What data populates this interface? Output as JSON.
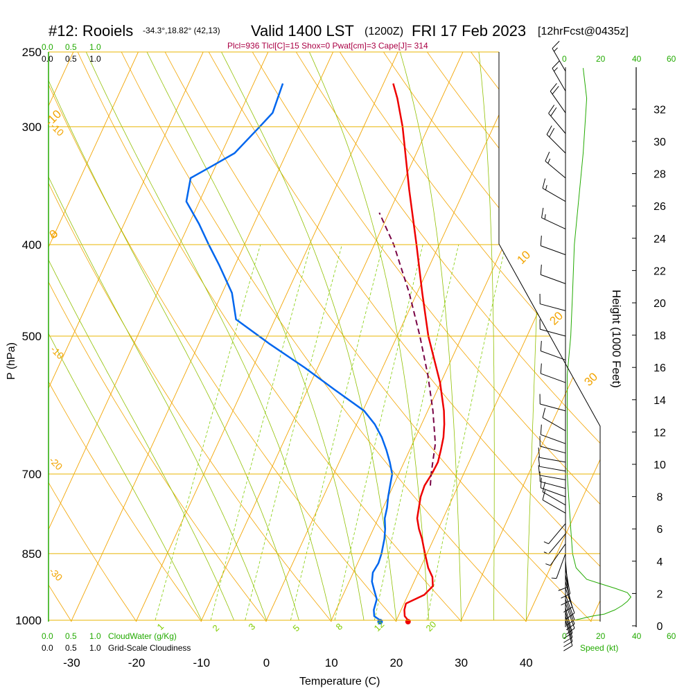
{
  "header": {
    "station": "#12: Rooiels",
    "coords": "-34.3°,18.82° (42,13)",
    "valid": "Valid 1400 LST",
    "utc": "(1200Z)",
    "date": "FRI 17 Feb 2023",
    "fcst": "[12hrFcst@0435z]"
  },
  "subheader": "Plcl=936 Tlcl[C]=15 Shox=0 Pwat[cm]=3 Cape[J]= 314",
  "colors": {
    "isobar": "#e8b400",
    "isotherm": "#f2a400",
    "dry_adiabat": "#f2a400",
    "moist_adiabat": "#90c000",
    "mixing_ratio": "#80cc00",
    "temperature": "#ee0000",
    "dewpoint": "#0066ee",
    "parcel": "#770044",
    "cloud": "#22aa00",
    "wind": "#000000",
    "subheader": "#aa0044"
  },
  "left_scales": {
    "top_cloudwater": [
      "0.0",
      "0.5",
      "1.0"
    ],
    "top_cloudiness": [
      "0.0",
      "0.5",
      "1.0"
    ],
    "bottom_cloudwater": [
      "0.0",
      "0.5",
      "1.0"
    ],
    "bottom_cloudwater_label": "CloudWater (g/Kg)",
    "bottom_cloudiness": [
      "0.0",
      "0.5",
      "1.0"
    ],
    "bottom_cloudiness_label": "Grid-Scale Cloudiness"
  },
  "speed_scale": {
    "ticks": [
      "0",
      "20",
      "40",
      "60"
    ],
    "label": "Speed (kt)"
  },
  "chart_data": {
    "type": "line",
    "subtype": "skew-T log-P sounding",
    "xlabel": "Temperature (C)",
    "ylabel": "P (hPa)",
    "y2label": "Height (1000 Feet)",
    "xlim": [
      -30,
      50
    ],
    "ylim": [
      1000,
      250
    ],
    "y_scale": "log",
    "x_ticks": [
      "-30",
      "-20",
      "-10",
      "0",
      "10",
      "20",
      "30",
      "40"
    ],
    "p_ticks": [
      "250",
      "300",
      "400",
      "500",
      "700",
      "850",
      "1000"
    ],
    "height_ticks": [
      "0",
      "2",
      "4",
      "6",
      "8",
      "10",
      "12",
      "14",
      "16",
      "18",
      "20",
      "22",
      "24",
      "26",
      "28",
      "30",
      "32"
    ],
    "isotherm_labels": [
      "-10",
      "0",
      "10",
      "20",
      "30"
    ],
    "dry_adiabat_labels": [
      "-10",
      "0",
      "-10",
      "-20",
      "-30"
    ],
    "mixing_ratio_labels": [
      "1",
      "2",
      "3",
      "5",
      "8",
      "12",
      "20"
    ],
    "series": [
      {
        "key": "temperature",
        "points": [
          [
            1000,
            21.8
          ],
          [
            990,
            21.0
          ],
          [
            975,
            20.5
          ],
          [
            960,
            20.3
          ],
          [
            940,
            22.5
          ],
          [
            920,
            23.2
          ],
          [
            900,
            22.5
          ],
          [
            880,
            21.2
          ],
          [
            860,
            20.2
          ],
          [
            840,
            19.2
          ],
          [
            820,
            18.2
          ],
          [
            800,
            17.0
          ],
          [
            780,
            16.0
          ],
          [
            760,
            15.5
          ],
          [
            740,
            15.0
          ],
          [
            720,
            14.8
          ],
          [
            700,
            15.1
          ],
          [
            680,
            15.2
          ],
          [
            660,
            14.8
          ],
          [
            640,
            14.3
          ],
          [
            620,
            13.5
          ],
          [
            600,
            12.5
          ],
          [
            560,
            9.9
          ],
          [
            500,
            4.8
          ],
          [
            450,
            0.8
          ],
          [
            400,
            -3.5
          ],
          [
            350,
            -8.5
          ],
          [
            300,
            -14.0
          ],
          [
            280,
            -16.8
          ],
          [
            270,
            -18.5
          ]
        ]
      },
      {
        "key": "dewpoint",
        "points": [
          [
            1000,
            17.5
          ],
          [
            990,
            16.3
          ],
          [
            975,
            15.8
          ],
          [
            950,
            15.5
          ],
          [
            930,
            14.5
          ],
          [
            910,
            13.5
          ],
          [
            890,
            13.0
          ],
          [
            870,
            13.2
          ],
          [
            850,
            13.0
          ],
          [
            820,
            12.4
          ],
          [
            800,
            11.8
          ],
          [
            780,
            11.0
          ],
          [
            760,
            10.6
          ],
          [
            740,
            10.0
          ],
          [
            720,
            9.5
          ],
          [
            700,
            9.0
          ],
          [
            680,
            7.8
          ],
          [
            660,
            6.4
          ],
          [
            640,
            4.8
          ],
          [
            620,
            2.8
          ],
          [
            600,
            0.2
          ],
          [
            570,
            -5.8
          ],
          [
            540,
            -12.0
          ],
          [
            510,
            -19.0
          ],
          [
            480,
            -26.0
          ],
          [
            450,
            -28.5
          ],
          [
            420,
            -32.5
          ],
          [
            400,
            -35.5
          ],
          [
            380,
            -38.5
          ],
          [
            360,
            -42.0
          ],
          [
            340,
            -43.0
          ],
          [
            330,
            -40.5
          ],
          [
            320,
            -38.0
          ],
          [
            300,
            -36.0
          ],
          [
            290,
            -35.0
          ],
          [
            270,
            -35.5
          ]
        ]
      },
      {
        "key": "parcel",
        "points": [
          [
            720,
            15.7
          ],
          [
            700,
            15.0
          ],
          [
            650,
            13.5
          ],
          [
            600,
            10.8
          ],
          [
            550,
            7.5
          ],
          [
            500,
            3.5
          ],
          [
            450,
            -1.2
          ],
          [
            400,
            -7.0
          ],
          [
            370,
            -11.5
          ]
        ]
      }
    ],
    "surface_markers": [
      {
        "key": "temperature",
        "pressure": 1000,
        "value": 21.8
      },
      {
        "key": "dewpoint",
        "pressure": 1000,
        "value": 17.5
      }
    ],
    "winds": [
      {
        "pressure": 1000,
        "dir": 165,
        "speed": 10
      },
      {
        "pressure": 990,
        "dir": 165,
        "speed": 10
      },
      {
        "pressure": 980,
        "dir": 165,
        "speed": 10
      },
      {
        "pressure": 970,
        "dir": 165,
        "speed": 12
      },
      {
        "pressure": 960,
        "dir": 160,
        "speed": 12
      },
      {
        "pressure": 950,
        "dir": 160,
        "speed": 12
      },
      {
        "pressure": 940,
        "dir": 160,
        "speed": 12
      },
      {
        "pressure": 925,
        "dir": 160,
        "speed": 12
      },
      {
        "pressure": 910,
        "dir": 165,
        "speed": 12
      },
      {
        "pressure": 895,
        "dir": 170,
        "speed": 10
      },
      {
        "pressure": 880,
        "dir": 170,
        "speed": 10
      },
      {
        "pressure": 865,
        "dir": 175,
        "speed": 10
      },
      {
        "pressure": 850,
        "dir": 200,
        "speed": 5
      },
      {
        "pressure": 830,
        "dir": 215,
        "speed": 5
      },
      {
        "pressure": 810,
        "dir": 220,
        "speed": 5
      },
      {
        "pressure": 790,
        "dir": 220,
        "speed": 5
      },
      {
        "pressure": 770,
        "dir": 300,
        "speed": 10
      },
      {
        "pressure": 755,
        "dir": 300,
        "speed": 10
      },
      {
        "pressure": 740,
        "dir": 290,
        "speed": 10
      },
      {
        "pressure": 725,
        "dir": 285,
        "speed": 10
      },
      {
        "pressure": 710,
        "dir": 280,
        "speed": 10
      },
      {
        "pressure": 695,
        "dir": 280,
        "speed": 10
      },
      {
        "pressure": 680,
        "dir": 280,
        "speed": 10
      },
      {
        "pressure": 665,
        "dir": 285,
        "speed": 10
      },
      {
        "pressure": 650,
        "dir": 290,
        "speed": 10
      },
      {
        "pressure": 630,
        "dir": 300,
        "speed": 10
      },
      {
        "pressure": 600,
        "dir": 285,
        "speed": 10
      },
      {
        "pressure": 560,
        "dir": 290,
        "speed": 10
      },
      {
        "pressure": 530,
        "dir": 290,
        "speed": 10
      },
      {
        "pressure": 500,
        "dir": 285,
        "speed": 10
      },
      {
        "pressure": 470,
        "dir": 285,
        "speed": 10
      },
      {
        "pressure": 440,
        "dir": 290,
        "speed": 10
      },
      {
        "pressure": 410,
        "dir": 290,
        "speed": 10
      },
      {
        "pressure": 385,
        "dir": 295,
        "speed": 15
      },
      {
        "pressure": 360,
        "dir": 300,
        "speed": 15
      },
      {
        "pressure": 340,
        "dir": 310,
        "speed": 15
      },
      {
        "pressure": 320,
        "dir": 315,
        "speed": 20
      },
      {
        "pressure": 305,
        "dir": 320,
        "speed": 20
      },
      {
        "pressure": 290,
        "dir": 325,
        "speed": 20
      },
      {
        "pressure": 275,
        "dir": 330,
        "speed": 15
      },
      {
        "pressure": 262,
        "dir": 330,
        "speed": 15
      }
    ],
    "wind_speed_profile": [
      [
        1000,
        5
      ],
      [
        990,
        15
      ],
      [
        985,
        22
      ],
      [
        975,
        28
      ],
      [
        965,
        32
      ],
      [
        955,
        35
      ],
      [
        945,
        37
      ],
      [
        935,
        35
      ],
      [
        925,
        28
      ],
      [
        915,
        20
      ],
      [
        905,
        12
      ],
      [
        880,
        6
      ],
      [
        850,
        4
      ],
      [
        800,
        3
      ],
      [
        750,
        2
      ],
      [
        700,
        1
      ],
      [
        650,
        1
      ],
      [
        600,
        1
      ],
      [
        550,
        1
      ],
      [
        500,
        3
      ],
      [
        450,
        4
      ],
      [
        400,
        5
      ],
      [
        350,
        8
      ],
      [
        320,
        10
      ],
      [
        300,
        11
      ],
      [
        280,
        12
      ],
      [
        260,
        10
      ]
    ],
    "cloud_water": [
      [
        1000,
        0
      ],
      [
        250,
        0
      ]
    ]
  }
}
